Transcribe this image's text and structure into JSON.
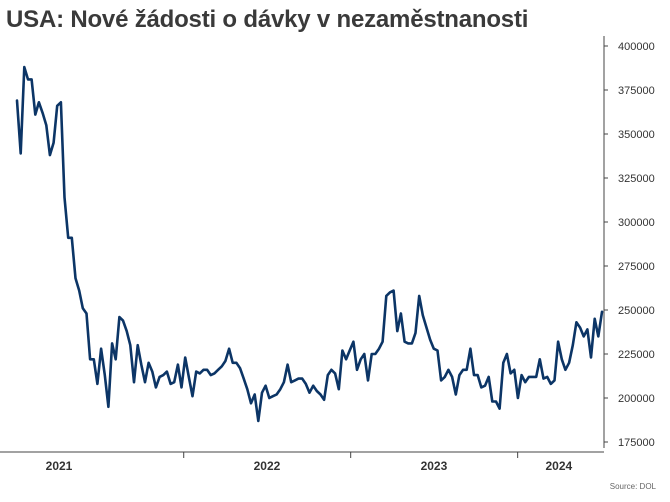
{
  "title": "USA: Nové žádosti o dávky v nezaměstnanosti",
  "source": "Source: DOL",
  "colors": {
    "line": "#0c3566",
    "axis": "#444444",
    "tick_label": "#333333",
    "title": "#3a3a3a"
  },
  "chart_data": {
    "type": "line",
    "title": "USA: Nové žádosti o dávky v nezaměstnanosti",
    "xlabel": "",
    "ylabel": "",
    "ylim": [
      175000,
      400000
    ],
    "y_ticks": [
      "175000",
      "200000",
      "225000",
      "250000",
      "275000",
      "300000",
      "325000",
      "350000",
      "375000",
      "400000"
    ],
    "y_tick_values": [
      175000,
      200000,
      225000,
      250000,
      275000,
      300000,
      325000,
      350000,
      375000,
      400000
    ],
    "x_tick_labels": [
      "2021",
      "2022",
      "2023",
      "2024"
    ],
    "grid": false,
    "legend": "none",
    "x_start": "2020-12-26",
    "x_end": "2024-06-29",
    "series": [
      {
        "values": [
          369000,
          339000,
          388000,
          381000,
          381000,
          361000,
          368000,
          362000,
          355000,
          338000,
          345000,
          366000,
          368000,
          314000,
          291000,
          291000,
          268000,
          261000,
          251000,
          248000,
          222000,
          222000,
          208000,
          228000,
          213000,
          195000,
          231000,
          222000,
          246000,
          244000,
          238000,
          230000,
          209000,
          230000,
          219000,
          209000,
          220000,
          215000,
          206000,
          212000,
          213000,
          215000,
          208000,
          209000,
          219000,
          206000,
          223000,
          212000,
          201000,
          215000,
          214000,
          216000,
          216000,
          213000,
          214000,
          216000,
          218000,
          221000,
          228000,
          220000,
          220000,
          217000,
          211000,
          205000,
          197000,
          202000,
          187000,
          203000,
          207000,
          200000,
          201000,
          202000,
          205000,
          209000,
          219000,
          209000,
          210000,
          211000,
          211000,
          208000,
          203000,
          207000,
          204000,
          202000,
          199000,
          213000,
          216000,
          214000,
          205000,
          227000,
          222000,
          227000,
          232000,
          216000,
          222000,
          225000,
          210000,
          225000,
          225000,
          228000,
          232000,
          258000,
          260000,
          261000,
          238000,
          248000,
          232000,
          231000,
          231000,
          237000,
          258000,
          247000,
          240000,
          233000,
          228000,
          227000,
          210000,
          212000,
          216000,
          212000,
          202000,
          213000,
          216000,
          216000,
          228000,
          213000,
          213000,
          206000,
          207000,
          212000,
          198000,
          198000,
          194000,
          220000,
          225000,
          214000,
          216000,
          200000,
          213000,
          209000,
          212000,
          212000,
          212000,
          222000,
          211000,
          212000,
          208000,
          210000,
          232000,
          222000,
          216000,
          220000,
          230000,
          243000,
          240000,
          235000,
          239000,
          223000,
          245000,
          235000,
          249000
        ]
      }
    ]
  }
}
